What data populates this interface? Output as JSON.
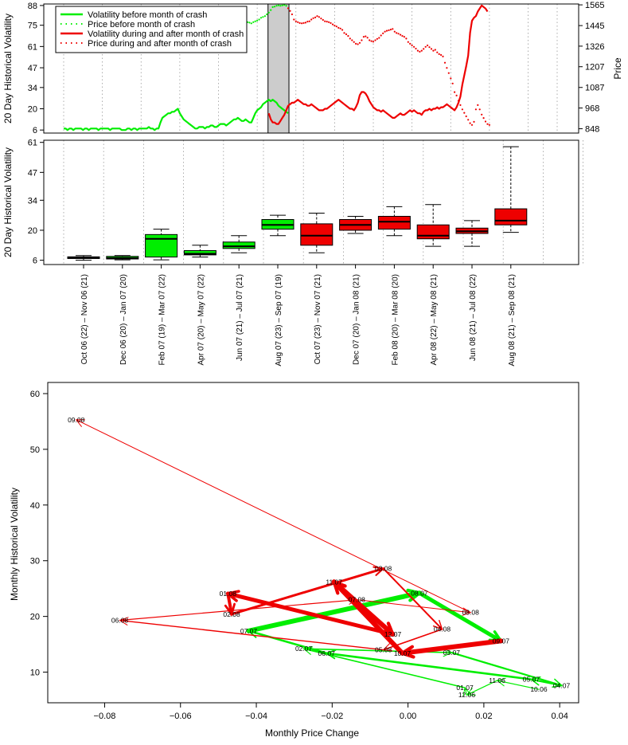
{
  "chart_data": [
    {
      "type": "line",
      "ylabel": "20 Day Historical Volatility",
      "y2label": "Price",
      "yticks": [
        "6",
        "20",
        "34",
        "47",
        "61",
        "75",
        "88"
      ],
      "y2ticks": [
        "848",
        "968",
        "1087",
        "1207",
        "1326",
        "1445",
        "1565"
      ],
      "ylim": [
        4,
        89
      ],
      "y2lim": [
        823,
        1570
      ],
      "legend": {
        "placement": "top-left",
        "entries": [
          {
            "label": "Volatility before month of crash",
            "color": "#00ee00",
            "style": "solid"
          },
          {
            "label": "Price before month of crash",
            "color": "#00ee00",
            "style": "dotted"
          },
          {
            "label": "Volatility during and after month of crash",
            "color": "#ee0000",
            "style": "solid"
          },
          {
            "label": "Price during and after month of crash",
            "color": "#ee0000",
            "style": "dotted"
          }
        ]
      },
      "crash_band": {
        "start_index": 106,
        "end_index": 116,
        "color": "#cccccc"
      },
      "dashed_grid_x_index": [
        0,
        20,
        40,
        60,
        80,
        100,
        120,
        140,
        160,
        180,
        200,
        220,
        240,
        255
      ],
      "series": [
        {
          "name": "Volatility before month of crash",
          "axis": "left",
          "x_index_start": 0,
          "values": [
            7,
            7,
            6,
            7,
            7,
            6,
            7,
            7,
            7,
            7,
            6,
            7,
            7,
            6,
            7,
            7,
            7,
            7,
            6,
            7,
            7,
            7,
            7,
            7,
            6,
            7,
            7,
            7,
            7,
            7,
            6,
            6,
            6,
            7,
            7,
            6,
            7,
            7,
            6,
            7,
            7,
            7,
            7,
            7,
            8,
            7,
            7,
            6,
            7,
            7,
            11,
            14,
            15,
            16,
            17,
            17,
            18,
            18,
            19,
            20,
            17,
            15,
            13,
            12,
            11,
            10,
            9,
            8,
            7,
            7,
            8,
            8,
            8,
            7,
            8,
            8,
            9,
            9,
            8,
            8,
            9,
            10,
            10,
            10,
            9,
            10,
            11,
            12,
            13,
            13,
            14,
            13,
            12,
            12,
            13,
            12,
            11,
            11,
            14,
            17,
            19,
            20,
            21,
            23,
            24,
            25,
            26,
            25,
            26,
            25,
            24,
            22,
            21,
            20,
            19,
            18,
            17
          ]
        },
        {
          "name": "Volatility during and after month of crash",
          "axis": "left",
          "x_index_start": 106,
          "values": [
            17,
            13,
            11,
            11,
            10,
            10,
            12,
            14,
            16,
            19,
            22,
            23,
            24,
            24,
            25,
            26,
            25,
            24,
            23,
            23,
            22,
            22,
            23,
            22,
            21,
            20,
            19,
            19,
            19,
            20,
            20,
            21,
            22,
            23,
            24,
            25,
            26,
            25,
            24,
            23,
            22,
            21,
            20,
            20,
            19,
            21,
            24,
            29,
            31,
            31,
            30,
            28,
            25,
            23,
            21,
            20,
            19,
            19,
            18,
            19,
            18,
            17,
            16,
            15,
            14,
            14,
            15,
            16,
            17,
            16,
            16,
            17,
            18,
            19,
            18,
            19,
            18,
            17,
            17,
            16,
            18,
            19,
            19,
            20,
            19,
            20,
            20,
            21,
            20,
            21,
            21,
            22,
            23,
            22,
            21,
            20,
            19,
            21,
            24,
            28,
            36,
            42,
            48,
            55,
            70,
            78,
            80,
            81,
            84,
            86,
            88,
            87,
            86,
            84
          ]
        },
        {
          "name": "Price before month of crash",
          "axis": "right",
          "x_index_start": 70,
          "values": [
            1505,
            1510,
            1512,
            1516,
            1520,
            1524,
            1525,
            1522,
            1518,
            1519,
            1522,
            1527,
            1530,
            1534,
            1540,
            1545,
            1548,
            1552,
            1545,
            1535,
            1520,
            1500,
            1495,
            1480,
            1470,
            1465,
            1462,
            1458,
            1465,
            1470,
            1474,
            1480,
            1490,
            1495,
            1500,
            1510,
            1520,
            1535,
            1552,
            1555,
            1560,
            1562,
            1560,
            1562,
            1565,
            1560
          ]
        },
        {
          "name": "Price during and after month of crash",
          "axis": "right",
          "x_index_start": 116,
          "values": [
            1545,
            1530,
            1510,
            1480,
            1470,
            1465,
            1460,
            1458,
            1460,
            1462,
            1468,
            1470,
            1480,
            1488,
            1492,
            1500,
            1495,
            1486,
            1478,
            1470,
            1468,
            1465,
            1460,
            1452,
            1445,
            1440,
            1432,
            1428,
            1420,
            1402,
            1395,
            1385,
            1370,
            1360,
            1350,
            1340,
            1337,
            1345,
            1360,
            1380,
            1383,
            1375,
            1360,
            1355,
            1352,
            1360,
            1368,
            1374,
            1388,
            1400,
            1410,
            1415,
            1418,
            1422,
            1425,
            1410,
            1402,
            1398,
            1392,
            1385,
            1380,
            1370,
            1350,
            1340,
            1330,
            1322,
            1312,
            1300,
            1294,
            1300,
            1310,
            1322,
            1330,
            1320,
            1310,
            1300,
            1305,
            1290,
            1280,
            1275,
            1266,
            1230,
            1200,
            1170,
            1140,
            1110,
            1060,
            1040,
            1010,
            985,
            960,
            940,
            920,
            900,
            880,
            870,
            888,
            960,
            985,
            960,
            930,
            910,
            890,
            875,
            870
          ]
        }
      ]
    },
    {
      "type": "box",
      "ylabel": "20 Day Historical Volatility",
      "yticks": [
        "6",
        "20",
        "34",
        "47",
        "61"
      ],
      "ylim": [
        4,
        62
      ],
      "categories": [
        "Oct 06 (22) – Nov 06 (21)",
        "Dec 06 (20) – Jan 07 (20)",
        "Feb 07 (19) – Mar 07 (22)",
        "Apr 07 (20) – May 07 (22)",
        "Jun 07 (21) – Jul 07 (21)",
        "Aug 07 (23) – Sep 07 (19)",
        "Oct 07 (23) – Nov 07 (21)",
        "Dec 07 (20) – Jan 08 (21)",
        "Feb 08 (20) – Mar 08 (20)",
        "Apr 08 (22) – May 08 (21)",
        "Jun 08 (21) – Jul 08 (22)",
        "Aug 08 (21) – Sep 08 (21)"
      ],
      "boxes": [
        {
          "whisker_low": 6,
          "q1": 6.8,
          "median": 7.2,
          "q3": 7.6,
          "whisker_high": 8.2,
          "color": "#00ee00"
        },
        {
          "whisker_low": 6.2,
          "q1": 6.6,
          "median": 7.0,
          "q3": 7.8,
          "whisker_high": 8.2,
          "color": "#00ee00"
        },
        {
          "whisker_low": 6.2,
          "q1": 7.5,
          "median": 16,
          "q3": 18,
          "whisker_high": 20.5,
          "color": "#00ee00"
        },
        {
          "whisker_low": 7.5,
          "q1": 8.5,
          "median": 9.0,
          "q3": 10.5,
          "whisker_high": 13,
          "color": "#00ee00"
        },
        {
          "whisker_low": 9.5,
          "q1": 11.5,
          "median": 12.5,
          "q3": 14.5,
          "whisker_high": 17.5,
          "color": "#00ee00"
        },
        {
          "whisker_low": 17.5,
          "q1": 20.5,
          "median": 22.5,
          "q3": 25,
          "whisker_high": 27,
          "color": "#00ee00"
        },
        {
          "whisker_low": 9.5,
          "q1": 13,
          "median": 17.5,
          "q3": 23,
          "whisker_high": 28,
          "color": "#ee0000"
        },
        {
          "whisker_low": 18.5,
          "q1": 20,
          "median": 22.5,
          "q3": 25,
          "whisker_high": 26.5,
          "color": "#ee0000"
        },
        {
          "whisker_low": 17.5,
          "q1": 20.5,
          "median": 24,
          "q3": 26.5,
          "whisker_high": 31,
          "color": "#ee0000"
        },
        {
          "whisker_low": 12.5,
          "q1": 16,
          "median": 17.5,
          "q3": 22.5,
          "whisker_high": 32,
          "color": "#ee0000"
        },
        {
          "whisker_low": 12.5,
          "q1": 18.5,
          "median": 19.5,
          "q3": 21,
          "whisker_high": 24.5,
          "color": "#ee0000"
        },
        {
          "whisker_low": 19,
          "q1": 22.5,
          "median": 24.5,
          "q3": 30,
          "whisker_high": 59,
          "color": "#ee0000"
        }
      ]
    },
    {
      "type": "scatter",
      "xlabel": "Monthly Price Change",
      "ylabel": "Monthly Historical Volatility",
      "xlim": [
        -0.095,
        0.045
      ],
      "ylim": [
        4.5,
        62
      ],
      "xticks": [
        "−0.08",
        "−0.06",
        "−0.04",
        "−0.02",
        "0.00",
        "0.02",
        "0.04"
      ],
      "yticks": [
        "10",
        "20",
        "30",
        "40",
        "50",
        "60"
      ],
      "points": [
        {
          "label": "10.06",
          "x": 0.0345,
          "y": 6.9,
          "color": "green"
        },
        {
          "label": "11.06",
          "x": 0.0235,
          "y": 8.5,
          "color": "green"
        },
        {
          "label": "12.06",
          "x": 0.0155,
          "y": 5.9,
          "color": "green"
        },
        {
          "label": "01.07",
          "x": 0.015,
          "y": 7.2,
          "color": "green"
        },
        {
          "label": "02.07",
          "x": -0.0275,
          "y": 14.2,
          "color": "green"
        },
        {
          "label": "03.07",
          "x": 0.0115,
          "y": 13.5,
          "color": "green"
        },
        {
          "label": "04.07",
          "x": 0.0405,
          "y": 7.6,
          "color": "green"
        },
        {
          "label": "05.07",
          "x": 0.0325,
          "y": 8.7,
          "color": "green"
        },
        {
          "label": "06.07",
          "x": -0.0215,
          "y": 13.4,
          "color": "green"
        },
        {
          "label": "07.07",
          "x": -0.042,
          "y": 17.4,
          "color": "green"
        },
        {
          "label": "08.07",
          "x": 0.003,
          "y": 24.2,
          "color": "green"
        },
        {
          "label": "09.07",
          "x": 0.0245,
          "y": 15.6,
          "color": "red"
        },
        {
          "label": "10.07",
          "x": -0.0015,
          "y": 13.4,
          "color": "red"
        },
        {
          "label": "11.07",
          "x": -0.0195,
          "y": 26.2,
          "color": "red"
        },
        {
          "label": "12.07",
          "x": -0.004,
          "y": 16.8,
          "color": "red"
        },
        {
          "label": "01.08",
          "x": -0.0475,
          "y": 24.1,
          "color": "red"
        },
        {
          "label": "02.08",
          "x": -0.0465,
          "y": 20.4,
          "color": "red"
        },
        {
          "label": "03.08",
          "x": -0.0065,
          "y": 28.6,
          "color": "red"
        },
        {
          "label": "04.08",
          "x": 0.009,
          "y": 17.7,
          "color": "red"
        },
        {
          "label": "05.08",
          "x": -0.0065,
          "y": 14.0,
          "color": "red"
        },
        {
          "label": "06.08",
          "x": -0.076,
          "y": 19.3,
          "color": "red"
        },
        {
          "label": "07.08",
          "x": -0.0135,
          "y": 23.0,
          "color": "red"
        },
        {
          "label": "08.08",
          "x": 0.0165,
          "y": 20.7,
          "color": "red"
        },
        {
          "label": "09.08",
          "x": -0.0875,
          "y": 55.3,
          "color": "red"
        }
      ],
      "arrows": [
        {
          "from": "10.06",
          "to": "11.06",
          "color": "#00ee00",
          "width": 1.2
        },
        {
          "from": "11.06",
          "to": "12.06",
          "color": "#00ee00",
          "width": 1.2
        },
        {
          "from": "12.06",
          "to": "01.07",
          "color": "#00ee00",
          "width": 1.2
        },
        {
          "from": "01.07",
          "to": "02.07",
          "color": "#00ee00",
          "width": 1.6
        },
        {
          "from": "02.07",
          "to": "03.07",
          "color": "#00ee00",
          "width": 1.6
        },
        {
          "from": "03.07",
          "to": "04.07",
          "color": "#00ee00",
          "width": 2.2
        },
        {
          "from": "04.07",
          "to": "05.07",
          "color": "#00ee00",
          "width": 2.2
        },
        {
          "from": "05.07",
          "to": "06.07",
          "color": "#00ee00",
          "width": 2.6
        },
        {
          "from": "06.07",
          "to": "07.07",
          "color": "#00ee00",
          "width": 2.6
        },
        {
          "from": "07.07",
          "to": "08.07",
          "color": "#00ee00",
          "width": 6
        },
        {
          "from": "08.07",
          "to": "09.07",
          "color": "#00ee00",
          "width": 5
        },
        {
          "from": "09.07",
          "to": "10.07",
          "color": "#ee0000",
          "width": 6
        },
        {
          "from": "10.07",
          "to": "11.07",
          "color": "#ee0000",
          "width": 6
        },
        {
          "from": "11.07",
          "to": "12.07",
          "color": "#ee0000",
          "width": 6
        },
        {
          "from": "12.07",
          "to": "01.08",
          "color": "#ee0000",
          "width": 5
        },
        {
          "from": "01.08",
          "to": "02.08",
          "color": "#ee0000",
          "width": 4
        },
        {
          "from": "02.08",
          "to": "03.08",
          "color": "#ee0000",
          "width": 3
        },
        {
          "from": "03.08",
          "to": "04.08",
          "color": "#ee0000",
          "width": 2
        },
        {
          "from": "04.08",
          "to": "05.08",
          "color": "#ee0000",
          "width": 1.6
        },
        {
          "from": "05.08",
          "to": "06.08",
          "color": "#ee0000",
          "width": 1.4
        },
        {
          "from": "06.08",
          "to": "07.08",
          "color": "#ee0000",
          "width": 1.2
        },
        {
          "from": "07.08",
          "to": "08.08",
          "color": "#ee0000",
          "width": 1
        },
        {
          "from": "08.08",
          "to": "09.08",
          "color": "#ee0000",
          "width": 1
        }
      ]
    }
  ]
}
